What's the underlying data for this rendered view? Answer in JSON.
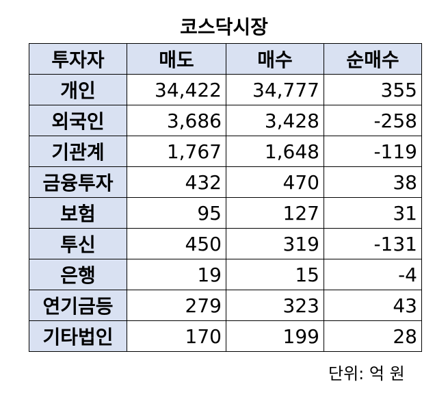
{
  "title": "코스닥시장",
  "table": {
    "header": [
      "투자자",
      "매도",
      "매수",
      "순매수"
    ],
    "rows": [
      [
        "개인",
        "34,422",
        "34,777",
        "355"
      ],
      [
        "외국인",
        "3,686",
        "3,428",
        "-258"
      ],
      [
        "기관계",
        "1,767",
        "1,648",
        "-119"
      ],
      [
        "금융투자",
        "432",
        "470",
        "38"
      ],
      [
        "보험",
        "95",
        "127",
        "31"
      ],
      [
        "투신",
        "450",
        "319",
        "-131"
      ],
      [
        "은행",
        "19",
        "15",
        "-4"
      ],
      [
        "연기금등",
        "279",
        "323",
        "43"
      ],
      [
        "기타법인",
        "170",
        "199",
        "28"
      ]
    ]
  },
  "note": "단위: 억 원"
}
